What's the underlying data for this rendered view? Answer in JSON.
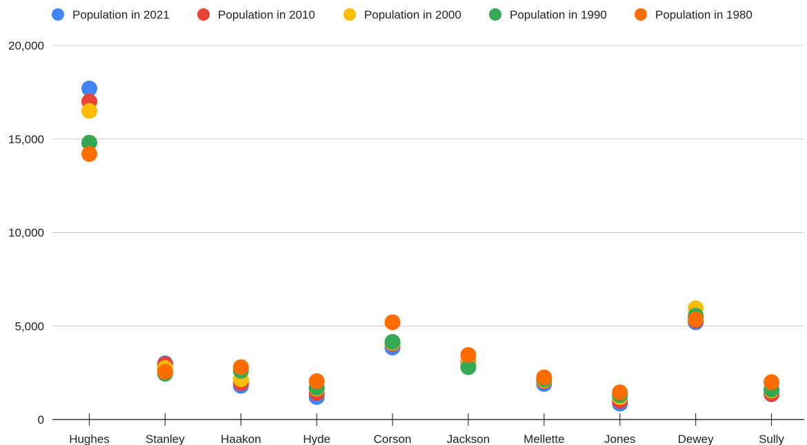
{
  "chart_data": {
    "type": "scatter",
    "title": "",
    "xlabel": "",
    "ylabel": "",
    "categories": [
      "Hughes",
      "Stanley",
      "Haakon",
      "Hyde",
      "Corson",
      "Jackson",
      "Mellette",
      "Jones",
      "Dewey",
      "Sully"
    ],
    "ylim": [
      0,
      20000
    ],
    "yticks": [
      0,
      5000,
      10000,
      15000,
      20000
    ],
    "ytick_labels": [
      "0",
      "5,000",
      "10,000",
      "15,000",
      "20,000"
    ],
    "grid": true,
    "legend_position": "top",
    "series": [
      {
        "name": "Population in 2021",
        "color": "#4285F4",
        "values": [
          17700,
          3000,
          1800,
          1200,
          3850,
          2950,
          1900,
          850,
          5200,
          1350
        ]
      },
      {
        "name": "Population in 2010",
        "color": "#EA4335",
        "values": [
          17000,
          2950,
          1950,
          1420,
          4050,
          3050,
          2050,
          1000,
          5300,
          1370
        ]
      },
      {
        "name": "Population in 2000",
        "color": "#FBBC04",
        "values": [
          16500,
          2750,
          2150,
          1650,
          4100,
          2950,
          2100,
          1200,
          5950,
          1550
        ]
      },
      {
        "name": "Population in 1990",
        "color": "#34A853",
        "values": [
          14800,
          2450,
          2600,
          1700,
          4150,
          2800,
          2150,
          1300,
          5550,
          1600
        ]
      },
      {
        "name": "Population in 1980",
        "color": "#FF6D01",
        "values": [
          14200,
          2550,
          2800,
          2050,
          5200,
          3450,
          2250,
          1450,
          5350,
          2000
        ]
      }
    ]
  }
}
